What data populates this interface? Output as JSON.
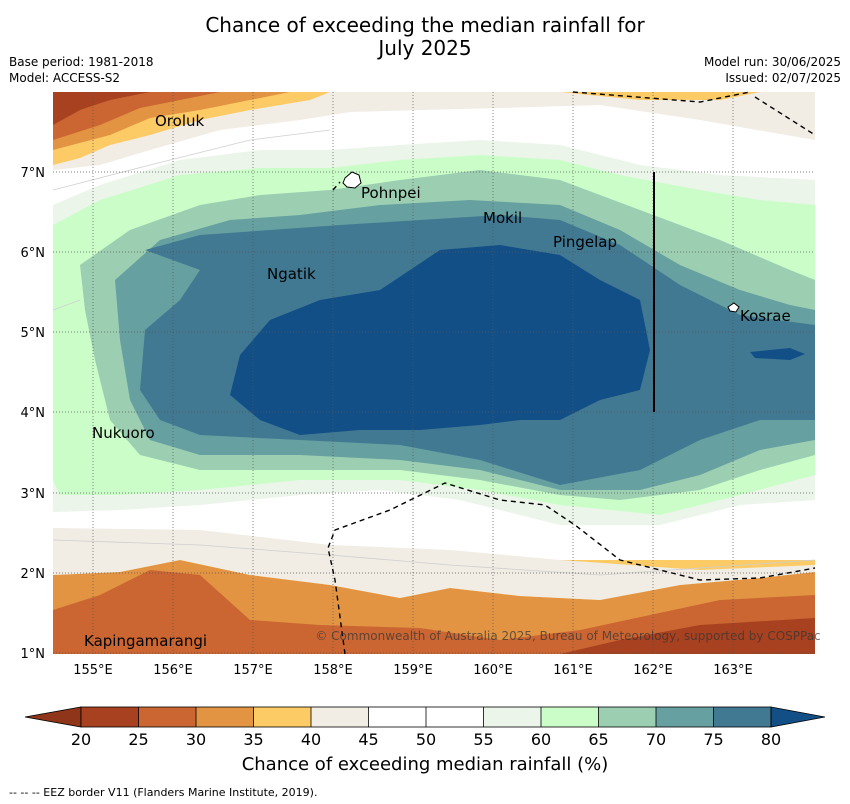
{
  "header": {
    "title_line1": "Chance of exceeding the median rainfall for",
    "title_line2": "July 2025",
    "base_period": "Base period: 1981-2018",
    "model": "Model: ACCESS-S2",
    "model_run": "Model run: 30/06/2025",
    "issued": "Issued: 02/07/2025"
  },
  "map": {
    "lat_labels": [
      "7°N",
      "6°N",
      "5°N",
      "4°N",
      "3°N",
      "2°N",
      "1°N"
    ],
    "lon_labels": [
      "155°E",
      "156°E",
      "157°E",
      "158°E",
      "159°E",
      "160°E",
      "161°E",
      "162°E",
      "163°E"
    ],
    "places": [
      "Oroluk",
      "Pohnpei",
      "Mokil",
      "Pingelap",
      "Ngatik",
      "Kosrae",
      "Nukuoro",
      "Kapingamarangi"
    ],
    "copyright": "© Commonwealth of Australia 2025, Bureau of Meteorology, supported by COSPPac",
    "colors": {
      "c20": "#a8411f",
      "c25": "#cb6633",
      "c30": "#e29443",
      "c35": "#fdcb66",
      "c40": "#f1ece4",
      "c45": "#ffffff",
      "c50": "#ffffff",
      "c55": "#ebf5e9",
      "c60": "#cbfdc9",
      "c65": "#9ccfb2",
      "c70": "#67a0a0",
      "c75": "#417993",
      "c80": "#134f87",
      "c15": "#8f3519"
    }
  },
  "colorbar": {
    "ticks": [
      "20",
      "25",
      "30",
      "35",
      "40",
      "45",
      "50",
      "55",
      "60",
      "65",
      "70",
      "75",
      "80"
    ],
    "title": "Chance of exceeding median rainfall (%)"
  },
  "footnote": "-- -- -- EEZ border V11 (Flanders Marine Institute, 2019)."
}
